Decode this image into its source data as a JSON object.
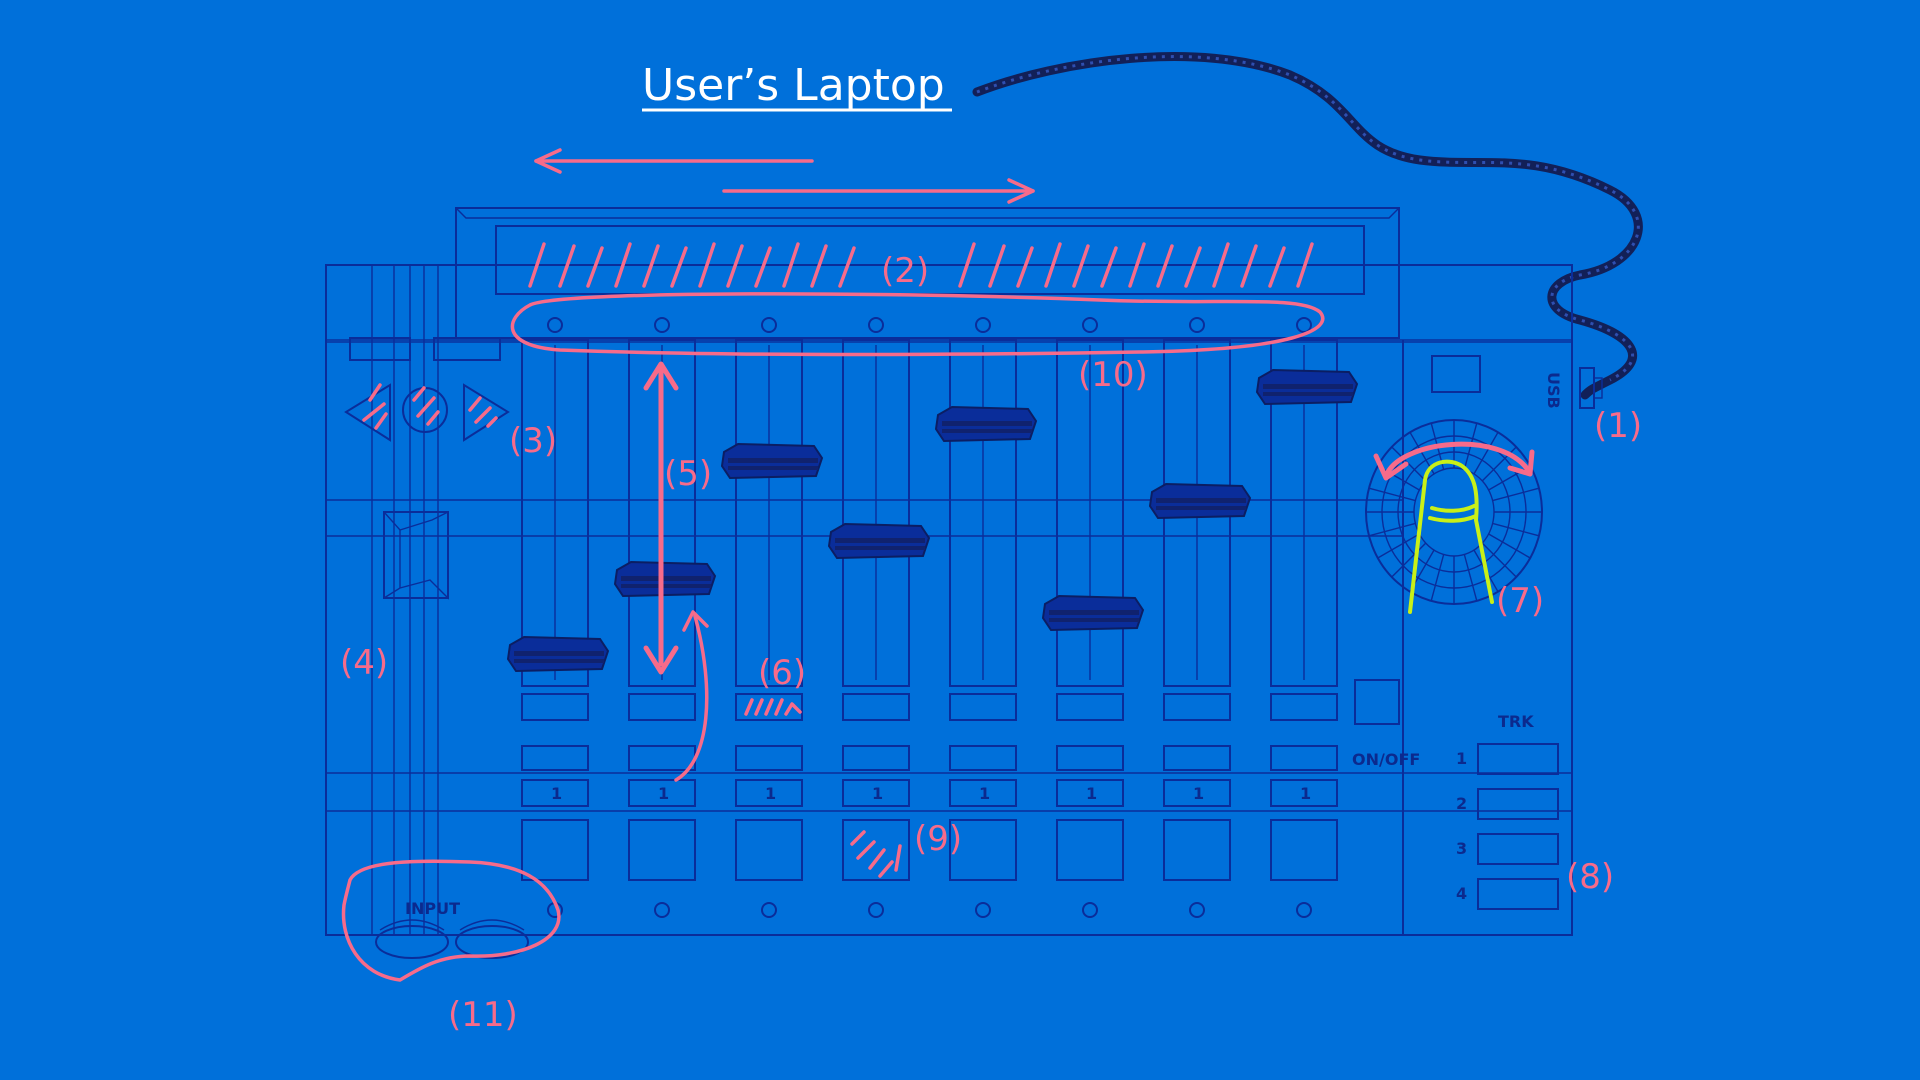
{
  "diagram": {
    "title": "User’s Laptop",
    "callouts": {
      "c1": "(1)",
      "c2": "(2)",
      "c3": "(3)",
      "c4": "(4)",
      "c5": "(5)",
      "c6": "(6)",
      "c7": "(7)",
      "c8": "(8)",
      "c9": "(9)",
      "c10": "(10)",
      "c11": "(11)"
    },
    "device": {
      "usb_label": "USB",
      "input_label": "INPUT",
      "onoff_label": "ON/OFF",
      "trk_label": "TRK",
      "track_numbers": [
        "1",
        "2",
        "3",
        "4"
      ],
      "channel_labels": [
        "1",
        "1",
        "1",
        "1",
        "1",
        "1",
        "1",
        "1"
      ]
    },
    "colors": {
      "background": "#0070DA",
      "line": "#0A2D9A",
      "annotation": "#F76B8A",
      "finger": "#C8F018",
      "title": "#FFFFFF"
    },
    "icons": [
      "usb-cable-icon",
      "finger-icon",
      "rotate-arrow-icon",
      "left-arrow-icon",
      "right-arrow-icon"
    ]
  }
}
